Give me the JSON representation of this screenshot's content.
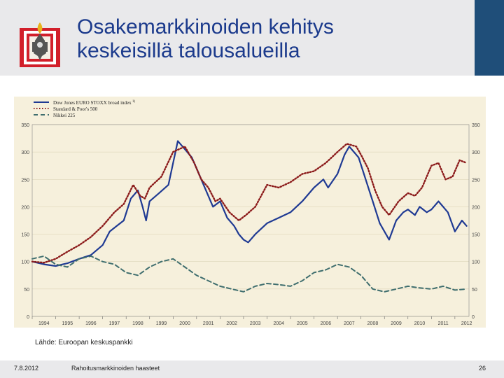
{
  "slide": {
    "title_line1": "Osakemarkkinoiden kehitys",
    "title_line2": "keskeisillä talousalueilla",
    "source": "Lähde:  Euroopan keskuspankki",
    "footer_date": "7.8.2012",
    "footer_title": "Rahoitusmarkkinoiden haasteet",
    "page_number": "26",
    "logo_icon": "coat-of-arms-icon"
  },
  "colors": {
    "title": "#1b3a8c",
    "header_bg": "#e9e9eb",
    "accent_bar": "#1f4e79",
    "chart_bg": "#f6f0dc",
    "eurostoxx": "#1f3a93",
    "sp500": "#8b1a1a",
    "nikkei": "#3f6e6e"
  },
  "chart_data": {
    "type": "line",
    "title": "",
    "xlabel": "",
    "ylabel": "",
    "ylim": [
      0,
      350
    ],
    "xlim": [
      1994,
      2012.6
    ],
    "yticks": [
      0,
      50,
      100,
      150,
      200,
      250,
      300,
      350
    ],
    "xtick_labels": [
      "1994",
      "1995",
      "1996",
      "1997",
      "1998",
      "1999",
      "2000",
      "2001",
      "2002",
      "2003",
      "2004",
      "2005",
      "2006",
      "2007",
      "2008",
      "2009",
      "2010",
      "2011",
      "2012"
    ],
    "legend_position": "top-left",
    "series": [
      {
        "name": "Dow Jones EURO STOXX broad index",
        "footnote": "1)",
        "style": "solid",
        "x": [
          1994.0,
          1994.5,
          1995.0,
          1995.5,
          1996.0,
          1996.5,
          1997.0,
          1997.3,
          1997.6,
          1997.9,
          1998.2,
          1998.5,
          1998.7,
          1998.85,
          1999.0,
          1999.4,
          1999.8,
          2000.0,
          2000.2,
          2000.5,
          2000.8,
          2001.0,
          2001.2,
          2001.5,
          2001.7,
          2002.0,
          2002.3,
          2002.6,
          2002.8,
          2003.0,
          2003.2,
          2003.5,
          2004.0,
          2004.5,
          2005.0,
          2005.5,
          2006.0,
          2006.4,
          2006.6,
          2007.0,
          2007.3,
          2007.5,
          2007.7,
          2007.9,
          2008.2,
          2008.5,
          2008.8,
          2009.0,
          2009.2,
          2009.5,
          2009.8,
          2010.0,
          2010.3,
          2010.5,
          2010.8,
          2011.0,
          2011.3,
          2011.5,
          2011.7,
          2012.0,
          2012.3,
          2012.5
        ],
        "values": [
          100,
          95,
          92,
          97,
          105,
          112,
          130,
          155,
          165,
          175,
          215,
          230,
          200,
          175,
          210,
          225,
          240,
          280,
          320,
          305,
          290,
          270,
          250,
          220,
          200,
          210,
          180,
          165,
          150,
          140,
          135,
          150,
          170,
          180,
          190,
          210,
          235,
          250,
          235,
          260,
          295,
          310,
          300,
          290,
          250,
          210,
          170,
          155,
          140,
          175,
          190,
          195,
          185,
          200,
          190,
          195,
          210,
          200,
          190,
          155,
          175,
          165
        ]
      },
      {
        "name": "Standard & Poor's 500",
        "style": "dotted",
        "x": [
          1994.0,
          1994.5,
          1995.0,
          1995.5,
          1996.0,
          1996.5,
          1997.0,
          1997.5,
          1997.9,
          1998.3,
          1998.6,
          1998.8,
          1999.0,
          1999.5,
          2000.0,
          2000.5,
          2000.9,
          2001.2,
          2001.5,
          2001.8,
          2002.0,
          2002.4,
          2002.8,
          2003.1,
          2003.5,
          2004.0,
          2004.5,
          2005.0,
          2005.5,
          2006.0,
          2006.5,
          2007.0,
          2007.4,
          2007.8,
          2008.0,
          2008.3,
          2008.6,
          2008.9,
          2009.2,
          2009.6,
          2010.0,
          2010.3,
          2010.6,
          2011.0,
          2011.3,
          2011.6,
          2011.9,
          2012.2,
          2012.5
        ],
        "values": [
          100,
          98,
          105,
          118,
          130,
          145,
          165,
          190,
          205,
          240,
          220,
          215,
          235,
          255,
          300,
          310,
          280,
          250,
          235,
          210,
          215,
          190,
          175,
          185,
          200,
          240,
          235,
          245,
          260,
          265,
          280,
          300,
          315,
          310,
          295,
          270,
          230,
          200,
          185,
          210,
          225,
          220,
          235,
          275,
          280,
          250,
          255,
          285,
          280
        ]
      },
      {
        "name": "Nikkei 225",
        "style": "dashed",
        "x": [
          1994.0,
          1994.5,
          1995.0,
          1995.5,
          1996.0,
          1996.5,
          1997.0,
          1997.5,
          1998.0,
          1998.5,
          1999.0,
          1999.5,
          2000.0,
          2000.5,
          2001.0,
          2001.5,
          2002.0,
          2002.5,
          2003.0,
          2003.5,
          2004.0,
          2004.5,
          2005.0,
          2005.5,
          2006.0,
          2006.5,
          2007.0,
          2007.5,
          2008.0,
          2008.5,
          2009.0,
          2009.5,
          2010.0,
          2010.5,
          2011.0,
          2011.5,
          2012.0,
          2012.5
        ],
        "values": [
          105,
          110,
          95,
          90,
          105,
          110,
          100,
          95,
          80,
          75,
          90,
          100,
          105,
          90,
          75,
          65,
          55,
          50,
          45,
          55,
          60,
          58,
          55,
          65,
          80,
          85,
          95,
          90,
          75,
          50,
          45,
          50,
          55,
          52,
          50,
          55,
          48,
          50
        ]
      }
    ]
  }
}
